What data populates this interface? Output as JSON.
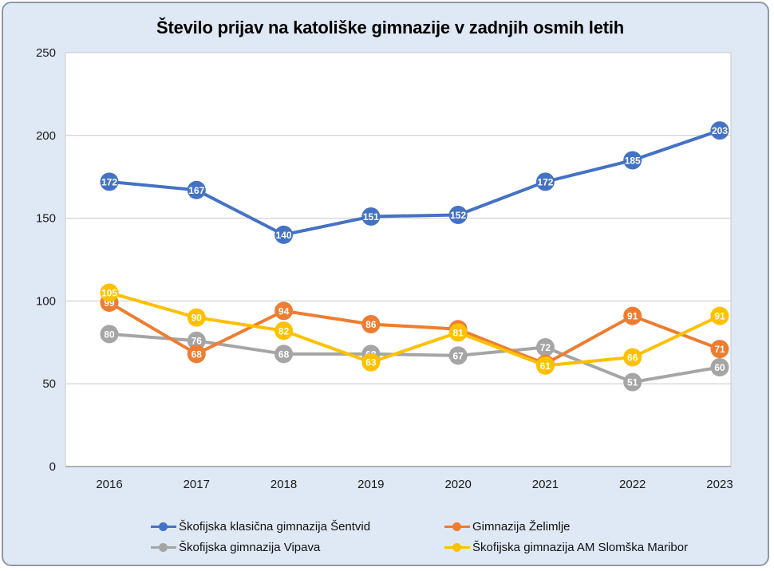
{
  "chart_data": {
    "type": "line",
    "title": "Število prijav na katoliške gimnazije v zadnjih osmih letih",
    "categories": [
      "2016",
      "2017",
      "2018",
      "2019",
      "2020",
      "2021",
      "2022",
      "2023"
    ],
    "series": [
      {
        "name": "Škofijska klasična gimnazija Šentvid",
        "color": "#4472C4",
        "values": [
          172,
          167,
          140,
          151,
          152,
          172,
          185,
          203
        ],
        "labels": [
          "172",
          "167",
          "140",
          "151",
          "152",
          "172",
          "185",
          "203"
        ]
      },
      {
        "name": "Gimnazija Želimlje",
        "color": "#ED7D31",
        "values": [
          99,
          68,
          94,
          86,
          83,
          62,
          91,
          71
        ],
        "labels": [
          "99",
          "68",
          "94",
          "86",
          null,
          null,
          "91",
          "71"
        ]
      },
      {
        "name": "Škofijska gimnazija Vipava",
        "color": "#A5A5A5",
        "values": [
          80,
          76,
          68,
          68,
          67,
          72,
          51,
          60
        ],
        "labels": [
          "80",
          "76",
          "68",
          "68",
          "67",
          "72",
          "51",
          "60"
        ]
      },
      {
        "name": "Škofijska gimnazija AM Slomška Maribor",
        "color": "#FFC000",
        "values": [
          105,
          90,
          82,
          63,
          81,
          61,
          66,
          91
        ],
        "labels": [
          "105",
          "90",
          "82",
          "63",
          "81",
          "61",
          "66",
          "91"
        ]
      }
    ],
    "xlabel": "",
    "ylabel": "",
    "ylim": [
      0,
      250
    ],
    "y_ticks": [
      "0",
      "50",
      "100",
      "150",
      "200",
      "250"
    ],
    "grid": true,
    "legend_position": "bottom",
    "draw_order": [
      0,
      2,
      1,
      3
    ],
    "colors": {
      "frame_bg": "#dfe9f5",
      "plot_bg": "#ffffff",
      "gridline": "#c9c9c9",
      "axis_line": "#9a9a9a",
      "plot_border": "#c9c9c9",
      "tick_text": "#1a1a1a",
      "marker_label": "#ffffff"
    }
  }
}
